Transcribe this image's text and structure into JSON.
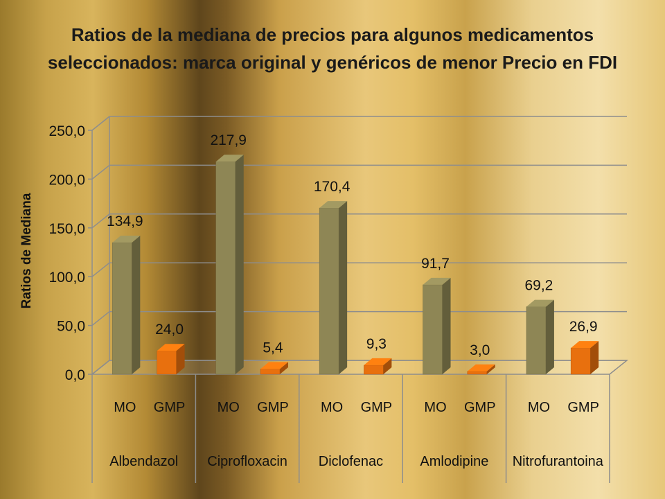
{
  "chart_data": {
    "type": "bar",
    "title_line1": "Ratios de la mediana de precios para algunos medicamentos",
    "title_line2": "seleccionados: marca original y  genéricos de menor Precio en FDI",
    "ylabel": "Ratios de Mediana",
    "xlabel": "",
    "ylim": [
      0,
      250
    ],
    "yticks": [
      "0,0",
      "50,0",
      "100,0",
      "150,0",
      "200,0",
      "250,0"
    ],
    "ytick_values": [
      0,
      50,
      100,
      150,
      200,
      250
    ],
    "groups": [
      "Albendazol",
      "Ciprofloxacin",
      "Diclofenac",
      "Amlodipine",
      "Nitrofurantoina"
    ],
    "series": [
      {
        "name": "MO",
        "color": "#8e8655",
        "values": [
          134.9,
          217.9,
          170.4,
          91.7,
          69.2
        ],
        "labels": [
          "134,9",
          "217,9",
          "170,4",
          "91,7",
          "69,2"
        ]
      },
      {
        "name": "GMP",
        "color": "#e8700e",
        "values": [
          24.0,
          5.4,
          9.3,
          3.0,
          26.9
        ],
        "labels": [
          "24,0",
          "5,4",
          "9,3",
          "3,0",
          "26,9"
        ]
      }
    ],
    "grid": true,
    "legend": "none"
  }
}
